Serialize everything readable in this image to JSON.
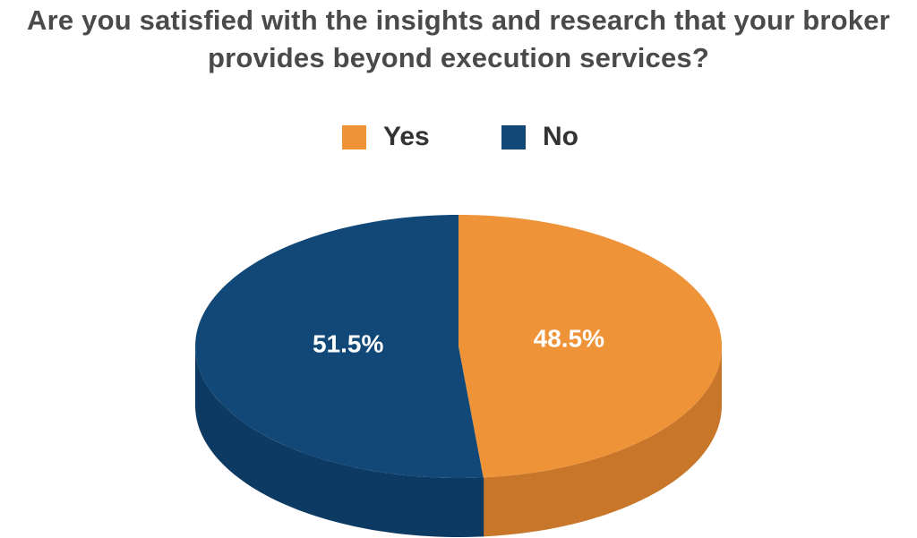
{
  "chart_data": {
    "type": "pie",
    "title_lines": [
      "Are you satisfied with the insights and research that your broker",
      "provides beyond execution services?"
    ],
    "categories": [
      "Yes",
      "No"
    ],
    "values": [
      48.5,
      51.5
    ],
    "value_labels": [
      "48.5%",
      "51.5%"
    ],
    "colors": [
      "#ef9338",
      "#124877"
    ],
    "side_colors": [
      "#c8772a",
      "#0d3a63"
    ],
    "legend_position": "top-center",
    "style": "3d"
  }
}
